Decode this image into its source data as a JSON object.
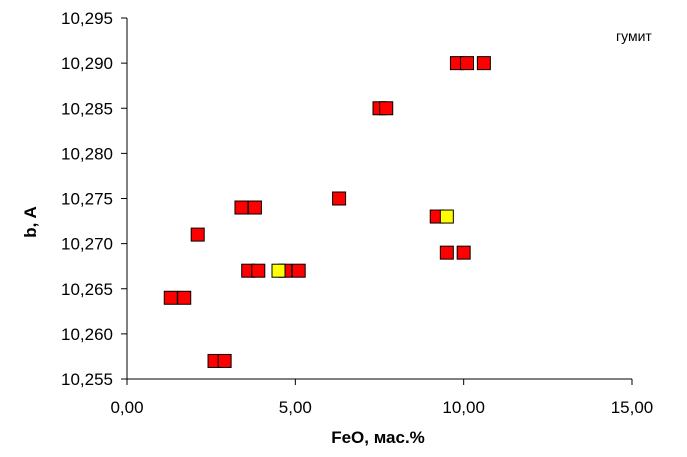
{
  "chart_data": {
    "type": "scatter",
    "title": "",
    "xlabel": "FeO, мас.%",
    "ylabel": "b, A",
    "xlim": [
      0,
      15
    ],
    "ylim": [
      10.255,
      10.295
    ],
    "x_ticks": [
      0,
      5,
      10,
      15
    ],
    "y_ticks": [
      10.255,
      10.26,
      10.265,
      10.27,
      10.275,
      10.28,
      10.285,
      10.29,
      10.295
    ],
    "x_tick_labels": [
      "0,00",
      "5,00",
      "10,00",
      "15,00"
    ],
    "y_tick_labels": [
      "10,255",
      "10,260",
      "10,265",
      "10,270",
      "10,275",
      "10,280",
      "10,285",
      "10,290",
      "10,295"
    ],
    "grid": false,
    "legend_label": "гумит",
    "legend_position": "top-right",
    "series": [
      {
        "color": "#ff0000",
        "marker": "square",
        "points": [
          {
            "x": 9.8,
            "y": 10.29
          },
          {
            "x": 10.1,
            "y": 10.29
          },
          {
            "x": 10.6,
            "y": 10.29
          },
          {
            "x": 7.5,
            "y": 10.285
          },
          {
            "x": 7.7,
            "y": 10.285
          },
          {
            "x": 6.3,
            "y": 10.275
          },
          {
            "x": 3.4,
            "y": 10.274
          },
          {
            "x": 3.8,
            "y": 10.274
          },
          {
            "x": 9.2,
            "y": 10.273
          },
          {
            "x": 2.1,
            "y": 10.271
          },
          {
            "x": 9.5,
            "y": 10.269
          },
          {
            "x": 10.0,
            "y": 10.269
          },
          {
            "x": 3.6,
            "y": 10.267
          },
          {
            "x": 3.9,
            "y": 10.267
          },
          {
            "x": 4.7,
            "y": 10.267
          },
          {
            "x": 5.1,
            "y": 10.267
          },
          {
            "x": 1.3,
            "y": 10.264
          },
          {
            "x": 1.7,
            "y": 10.264
          },
          {
            "x": 2.6,
            "y": 10.257
          },
          {
            "x": 2.9,
            "y": 10.257
          }
        ]
      },
      {
        "color": "#ffff00",
        "marker": "square",
        "points": [
          {
            "x": 9.5,
            "y": 10.273
          },
          {
            "x": 4.5,
            "y": 10.267
          }
        ]
      }
    ]
  }
}
